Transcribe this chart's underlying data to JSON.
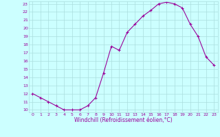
{
  "x": [
    0,
    1,
    2,
    3,
    4,
    5,
    6,
    7,
    8,
    9,
    10,
    11,
    12,
    13,
    14,
    15,
    16,
    17,
    18,
    19,
    20,
    21,
    22,
    23
  ],
  "y": [
    12,
    11.5,
    11,
    10.5,
    10,
    10,
    10,
    10.5,
    11.5,
    14.5,
    17.8,
    17.3,
    19.5,
    20.5,
    21.5,
    22.2,
    23,
    23.2,
    23,
    22.5,
    20.5,
    19,
    16.5,
    15.5
  ],
  "line_color": "#990099",
  "marker": "+",
  "bg_color": "#ccffff",
  "grid_color": "#aadddd",
  "xlabel": "Windchill (Refroidissement éolien,°C)",
  "xlabel_color": "#990099",
  "ylim_min": 9.7,
  "ylim_max": 23.3,
  "xlim_min": -0.5,
  "xlim_max": 23.5,
  "yticks": [
    10,
    11,
    12,
    13,
    14,
    15,
    16,
    17,
    18,
    19,
    20,
    21,
    22,
    23
  ],
  "xticks": [
    0,
    1,
    2,
    3,
    4,
    5,
    6,
    7,
    8,
    9,
    10,
    11,
    12,
    13,
    14,
    15,
    16,
    17,
    18,
    19,
    20,
    21,
    22,
    23
  ],
  "tick_color": "#990099",
  "tick_fontsize": 4.5,
  "xlabel_fontsize": 5.5,
  "marker_size": 3,
  "linewidth": 0.8
}
